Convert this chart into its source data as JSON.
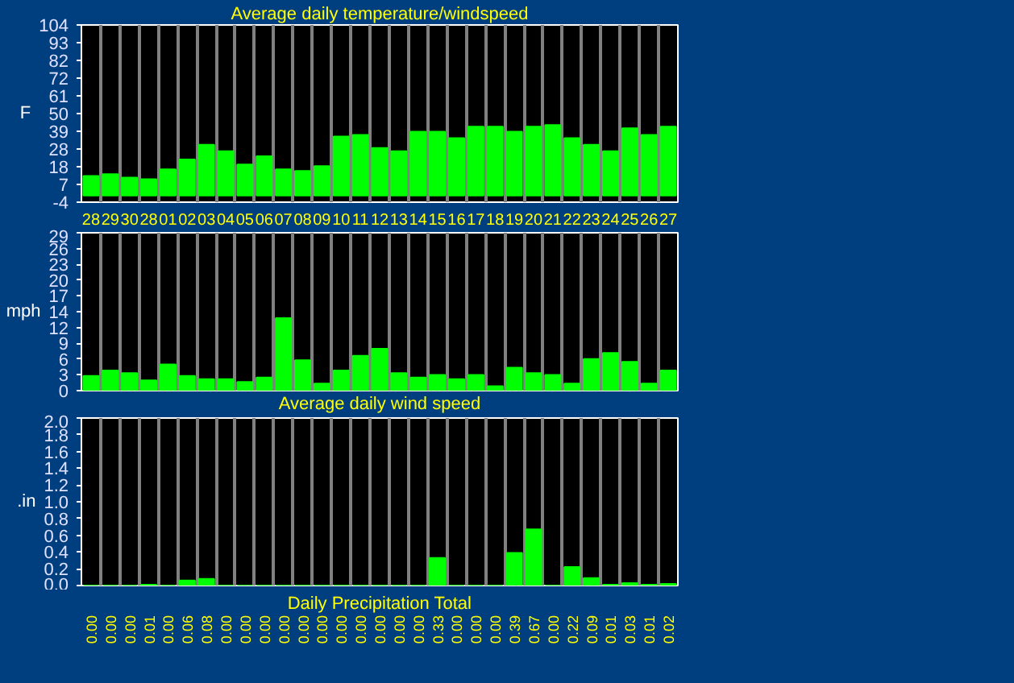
{
  "chart_data": [
    {
      "type": "bar",
      "title": "Average daily temperature/windspeed",
      "ylabel": "F",
      "categories": [
        "28",
        "29",
        "30",
        "28",
        "01",
        "02",
        "03",
        "04",
        "05",
        "06",
        "07",
        "08",
        "09",
        "10",
        "11",
        "12",
        "13",
        "14",
        "15",
        "16",
        "17",
        "18",
        "19",
        "20",
        "21",
        "22",
        "23",
        "24",
        "25",
        "26",
        "27"
      ],
      "values": [
        12,
        13,
        11,
        10,
        16,
        22,
        31,
        27,
        19,
        24,
        16,
        15,
        18,
        36,
        37,
        29,
        27,
        39,
        39,
        35,
        42,
        42,
        39,
        42,
        43,
        35,
        31,
        27,
        41,
        37,
        42
      ],
      "color": "#00ff00",
      "ylim": [
        -4,
        104
      ],
      "yticks": [
        -4,
        {
          "value": 6.8,
          "label": "7"
        },
        {
          "value": 17.6,
          "label": "18"
        },
        {
          "value": 28.4,
          "label": "28"
        },
        {
          "value": 39.2,
          "label": "39"
        },
        50,
        {
          "value": 60.8,
          "label": "61"
        },
        {
          "value": 71.6,
          "label": "72"
        },
        {
          "value": 82.4,
          "label": "82"
        },
        {
          "value": 93.2,
          "label": "93"
        },
        104
      ],
      "grid": "x"
    },
    {
      "type": "bar",
      "title": "Average daily wind speed",
      "ylabel": "mph",
      "categories": [
        "28",
        "29",
        "30",
        "28",
        "01",
        "02",
        "03",
        "04",
        "05",
        "06",
        "07",
        "08",
        "09",
        "10",
        "11",
        "12",
        "13",
        "14",
        "15",
        "16",
        "17",
        "18",
        "19",
        "20",
        "21",
        "22",
        "23",
        "24",
        "25",
        "26",
        "27"
      ],
      "values": [
        2.7,
        3.7,
        3.2,
        1.9,
        4.8,
        2.7,
        2.1,
        2.1,
        1.6,
        2.4,
        13.3,
        5.6,
        1.3,
        3.7,
        6.4,
        7.7,
        3.2,
        2.4,
        2.9,
        2.1,
        2.9,
        0.8,
        4.2,
        3.2,
        2.9,
        1.3,
        5.8,
        6.9,
        5.3,
        1.3,
        3.7
      ],
      "color": "#00ff00",
      "ylim": [
        0,
        29
      ],
      "yticks": [
        0,
        {
          "value": 2.9,
          "label": "3"
        },
        {
          "value": 5.8,
          "label": "6"
        },
        {
          "value": 8.7,
          "label": "9"
        },
        {
          "value": 11.6,
          "label": "12"
        },
        {
          "value": 14.5,
          "label": "14"
        },
        {
          "value": 17.4,
          "label": "17"
        },
        {
          "value": 20.3,
          "label": "20"
        },
        {
          "value": 23.2,
          "label": "23"
        },
        {
          "value": 26.1,
          "label": "26"
        },
        29
      ],
      "grid": "x",
      "tick_labels": "y"
    },
    {
      "type": "bar",
      "title": "Daily Precipitation Total",
      "ylabel": ".in",
      "categories": [
        "28",
        "29",
        "30",
        "28",
        "01",
        "02",
        "03",
        "04",
        "05",
        "06",
        "07",
        "08",
        "09",
        "10",
        "11",
        "12",
        "13",
        "14",
        "15",
        "16",
        "17",
        "18",
        "19",
        "20",
        "21",
        "22",
        "23",
        "24",
        "25",
        "26",
        "27"
      ],
      "values": [
        0,
        0,
        0,
        0.01,
        0,
        0.06,
        0.08,
        0,
        0,
        0,
        0,
        0,
        0,
        0,
        0,
        0,
        0,
        0,
        0.33,
        0,
        0,
        0,
        0.39,
        0.67,
        0,
        0.22,
        0.09,
        0.01,
        0.03,
        0.01,
        0.02
      ],
      "value_labels": [
        "0.00",
        "0.00",
        "0.00",
        "0.01",
        "0.00",
        "0.06",
        "0.08",
        "0.00",
        "0.00",
        "0.00",
        "0.00",
        "0.00",
        "0.00",
        "0.00",
        "0.00",
        "0.00",
        "0.00",
        "0.00",
        "0.33",
        "0.00",
        "0.00",
        "0.00",
        "0.39",
        "0.67",
        "0.00",
        "0.22",
        "0.09",
        "0.01",
        "0.03",
        "0.01",
        "0.02"
      ],
      "color": "#00ff00",
      "ylim": [
        0,
        2.0
      ],
      "yticks": [
        {
          "value": 0,
          "label": "0.0"
        },
        {
          "value": 0.2,
          "label": "0.2"
        },
        {
          "value": 0.4,
          "label": "0.4"
        },
        {
          "value": 0.6,
          "label": "0.6"
        },
        {
          "value": 0.8,
          "label": "0.8"
        },
        {
          "value": 1.0,
          "label": "1.0"
        },
        {
          "value": 1.2,
          "label": "1.2"
        },
        {
          "value": 1.4,
          "label": "1.4"
        },
        {
          "value": 1.6,
          "label": "1.6"
        },
        {
          "value": 1.8,
          "label": "1.8"
        },
        {
          "value": 2.0,
          "label": "2.0"
        }
      ],
      "grid": "x",
      "tick_labels": "y"
    }
  ]
}
